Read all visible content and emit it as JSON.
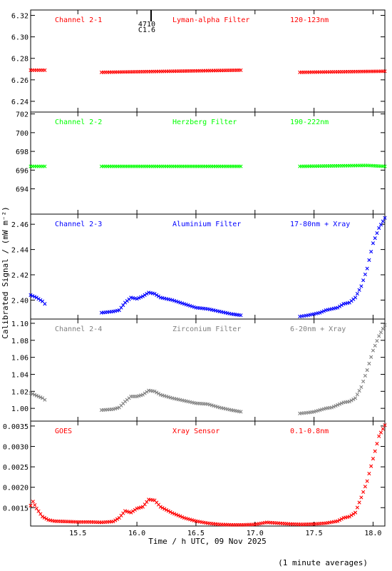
{
  "chart_data": {
    "type": "scatter",
    "shared_x": {
      "range": [
        15.1,
        18.1
      ],
      "ticks": [
        15.5,
        16.0,
        16.5,
        17.0,
        17.5,
        18.0
      ],
      "tick_labels": [
        "15.5",
        "16.0",
        "16.5",
        "17.0",
        "17.5",
        "18.0"
      ],
      "label": "Time / h UTC, 09 Nov 2025"
    },
    "ylabel": "Calibrated Signal / (mW m⁻²)",
    "footnote": "(1 minute averages)",
    "event_marker": {
      "x": 16.12,
      "label_top": "4710",
      "label_bottom": "C1.6"
    },
    "panels": [
      {
        "id": "channel-2-1",
        "labels": [
          "Channel 2-1",
          "Lyman-alpha Filter",
          "120-123nm"
        ],
        "color": "#ff0000",
        "ylim": [
          6.23,
          6.325
        ],
        "yticks": [
          6.24,
          6.26,
          6.28,
          6.3,
          6.32
        ],
        "ytick_labels": [
          "6.24",
          "6.26",
          "6.28",
          "6.30",
          "6.32"
        ],
        "segments": [
          {
            "x": [
              15.1,
              15.22
            ],
            "y": [
              6.269,
              6.269
            ]
          },
          {
            "x": [
              15.7,
              16.3,
              16.88
            ],
            "y": [
              6.267,
              6.268,
              6.269
            ]
          },
          {
            "x": [
              17.38,
              18.1
            ],
            "y": [
              6.267,
              6.268
            ]
          }
        ]
      },
      {
        "id": "channel-2-2",
        "labels": [
          "Channel 2-2",
          "Herzberg Filter",
          "190-222nm"
        ],
        "color": "#00ff00",
        "ylim": [
          691.3,
          702.2
        ],
        "yticks": [
          694,
          696,
          698,
          700,
          702
        ],
        "ytick_labels": [
          "694",
          "696",
          "698",
          "700",
          "702"
        ],
        "segments": [
          {
            "x": [
              15.1,
              15.22
            ],
            "y": [
              696.4,
              696.4
            ]
          },
          {
            "x": [
              15.7,
              16.5,
              16.88
            ],
            "y": [
              696.4,
              696.4,
              696.4
            ]
          },
          {
            "x": [
              17.38,
              17.95,
              18.1
            ],
            "y": [
              696.4,
              696.5,
              696.4
            ]
          }
        ]
      },
      {
        "id": "channel-2-3",
        "labels": [
          "Channel 2-3",
          "Aluminium Filter",
          "17-80nm + Xray"
        ],
        "color": "#0000ff",
        "ylim": [
          2.385,
          2.468
        ],
        "yticks": [
          2.4,
          2.42,
          2.44,
          2.46
        ],
        "ytick_labels": [
          "2.40",
          "2.42",
          "2.44",
          "2.46"
        ],
        "segments": [
          {
            "x": [
              15.1,
              15.15,
              15.2,
              15.22
            ],
            "y": [
              2.404,
              2.402,
              2.399,
              2.397
            ]
          },
          {
            "x": [
              15.7,
              15.8,
              15.85,
              15.9,
              15.95,
              16.0,
              16.05,
              16.1,
              16.15,
              16.2,
              16.3,
              16.4,
              16.5,
              16.6,
              16.7,
              16.8,
              16.88
            ],
            "y": [
              2.39,
              2.391,
              2.392,
              2.398,
              2.402,
              2.401,
              2.403,
              2.406,
              2.405,
              2.402,
              2.4,
              2.397,
              2.394,
              2.393,
              2.391,
              2.389,
              2.388
            ]
          },
          {
            "x": [
              17.38,
              17.45,
              17.5,
              17.55,
              17.6,
              17.65,
              17.7,
              17.75,
              17.8,
              17.85,
              17.9,
              17.95,
              18.0,
              18.05,
              18.1
            ],
            "y": [
              2.387,
              2.388,
              2.389,
              2.39,
              2.392,
              2.393,
              2.394,
              2.397,
              2.398,
              2.402,
              2.411,
              2.425,
              2.445,
              2.457,
              2.465
            ]
          }
        ]
      },
      {
        "id": "channel-2-4",
        "labels": [
          "Channel 2-4",
          "Zirconium Filter",
          "6-20nm + Xray"
        ],
        "color": "#808080",
        "ylim": [
          0.985,
          1.105
        ],
        "yticks": [
          1.0,
          1.02,
          1.04,
          1.06,
          1.08,
          1.1
        ],
        "ytick_labels": [
          "1.00",
          "1.02",
          "1.04",
          "1.06",
          "1.08",
          "1.10"
        ],
        "segments": [
          {
            "x": [
              15.1,
              15.15,
              15.2,
              15.22
            ],
            "y": [
              1.018,
              1.015,
              1.012,
              1.01
            ]
          },
          {
            "x": [
              15.7,
              15.8,
              15.85,
              15.9,
              15.95,
              16.0,
              16.05,
              16.1,
              16.15,
              16.2,
              16.3,
              16.4,
              16.5,
              16.6,
              16.7,
              16.8,
              16.88
            ],
            "y": [
              0.998,
              0.999,
              1.001,
              1.008,
              1.014,
              1.014,
              1.016,
              1.021,
              1.02,
              1.016,
              1.012,
              1.009,
              1.006,
              1.005,
              1.001,
              0.998,
              0.996
            ]
          },
          {
            "x": [
              17.38,
              17.45,
              17.5,
              17.55,
              17.6,
              17.65,
              17.7,
              17.75,
              17.8,
              17.85,
              17.9,
              17.95,
              18.0,
              18.05,
              18.1
            ],
            "y": [
              0.994,
              0.995,
              0.996,
              0.998,
              1.0,
              1.001,
              1.004,
              1.007,
              1.008,
              1.012,
              1.025,
              1.045,
              1.068,
              1.085,
              1.098
            ]
          }
        ]
      },
      {
        "id": "goes",
        "labels": [
          "GOES",
          "Xray Sensor",
          "0.1-0.8nm"
        ],
        "color": "#ff0000",
        "ylim": [
          0.00105,
          0.00362
        ],
        "yticks": [
          0.0015,
          0.002,
          0.0025,
          0.003,
          0.0035
        ],
        "ytick_labels": [
          "0.0015",
          "0.0020",
          "0.0025",
          "0.0030",
          "0.0035"
        ],
        "segments": [
          {
            "x": [
              15.1,
              15.12,
              15.15,
              15.2,
              15.25,
              15.3,
              15.4,
              15.5,
              15.6,
              15.7,
              15.8,
              15.85,
              15.9,
              15.95,
              16.0,
              16.05,
              16.1,
              16.15,
              16.2,
              16.3,
              16.4,
              16.5,
              16.6,
              16.7,
              16.8,
              16.9,
              17.0,
              17.1,
              17.2,
              17.3,
              17.4,
              17.5,
              17.6,
              17.7,
              17.75,
              17.8,
              17.85,
              17.9,
              17.95,
              18.0,
              18.05,
              18.1
            ],
            "y": [
              0.00155,
              0.00165,
              0.00148,
              0.00128,
              0.0012,
              0.00117,
              0.00116,
              0.00115,
              0.00115,
              0.00114,
              0.00116,
              0.00125,
              0.00142,
              0.00138,
              0.00148,
              0.00152,
              0.0017,
              0.00168,
              0.00152,
              0.00137,
              0.00125,
              0.00117,
              0.00112,
              0.00109,
              0.00108,
              0.00108,
              0.00109,
              0.00114,
              0.00112,
              0.0011,
              0.00109,
              0.0011,
              0.00112,
              0.00117,
              0.00125,
              0.00128,
              0.00138,
              0.00175,
              0.00215,
              0.0027,
              0.00325,
              0.00352
            ]
          }
        ]
      }
    ]
  }
}
